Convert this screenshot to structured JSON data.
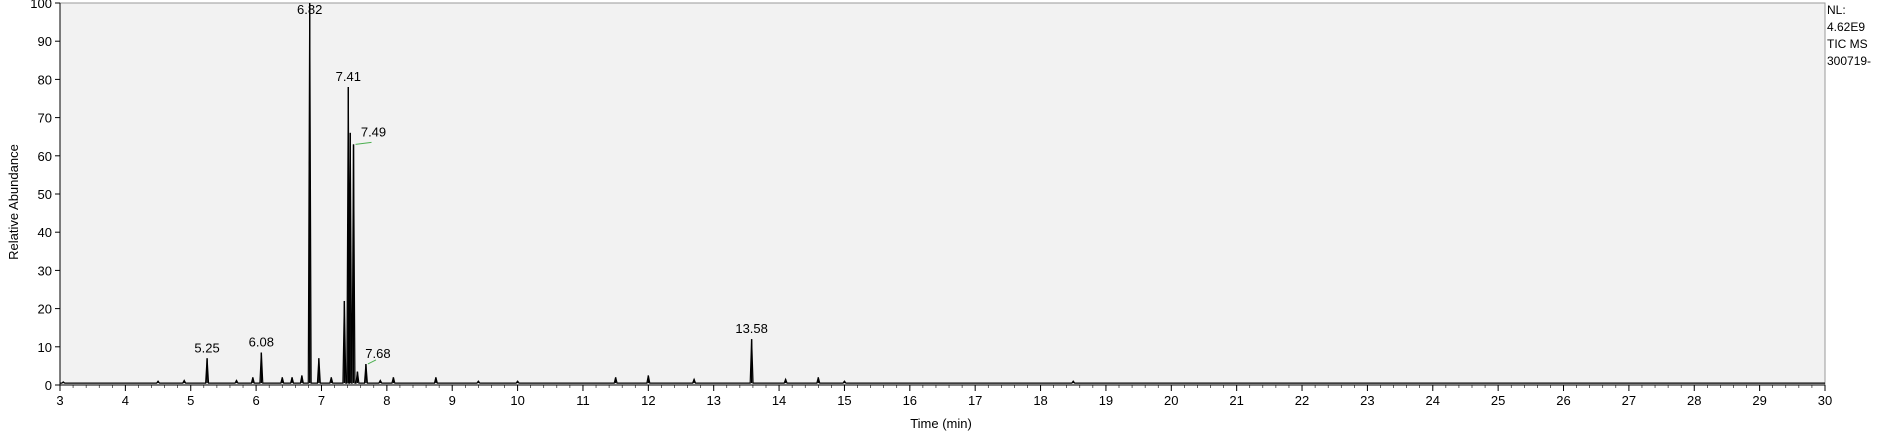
{
  "info": {
    "nl_label": "NL:",
    "nl_value": "4.62E9",
    "trace": "TIC  MS",
    "file": "300719-"
  },
  "chart_data": {
    "type": "line",
    "title": "",
    "xlabel": "Time (min)",
    "ylabel": "Relative Abundance",
    "xlim": [
      3,
      30
    ],
    "ylim": [
      0,
      100
    ],
    "xticks": [
      3,
      4,
      5,
      6,
      7,
      8,
      9,
      10,
      11,
      12,
      13,
      14,
      15,
      16,
      17,
      18,
      19,
      20,
      21,
      22,
      23,
      24,
      25,
      26,
      27,
      28,
      29,
      30
    ],
    "yticks": [
      0,
      10,
      20,
      30,
      40,
      50,
      60,
      70,
      80,
      90,
      100
    ],
    "grid": false,
    "plot_background": "#f2f2f2",
    "trace_color": "#000000",
    "baseline": 0.5,
    "peaks": [
      {
        "x": 3.05,
        "y": 0.8
      },
      {
        "x": 4.5,
        "y": 1.0
      },
      {
        "x": 4.9,
        "y": 1.2
      },
      {
        "x": 5.25,
        "y": 7.0
      },
      {
        "x": 5.7,
        "y": 1.2
      },
      {
        "x": 5.95,
        "y": 2.0
      },
      {
        "x": 6.08,
        "y": 8.5
      },
      {
        "x": 6.4,
        "y": 2.0
      },
      {
        "x": 6.55,
        "y": 2.0
      },
      {
        "x": 6.7,
        "y": 2.5
      },
      {
        "x": 6.82,
        "y": 100
      },
      {
        "x": 6.96,
        "y": 7.0
      },
      {
        "x": 7.15,
        "y": 2.0
      },
      {
        "x": 7.35,
        "y": 22.0
      },
      {
        "x": 7.41,
        "y": 78.0
      },
      {
        "x": 7.44,
        "y": 66.0
      },
      {
        "x": 7.49,
        "y": 63.0
      },
      {
        "x": 7.55,
        "y": 3.5
      },
      {
        "x": 7.68,
        "y": 5.5
      },
      {
        "x": 7.9,
        "y": 1.2
      },
      {
        "x": 8.1,
        "y": 2.0
      },
      {
        "x": 8.75,
        "y": 2.0
      },
      {
        "x": 9.4,
        "y": 1.0
      },
      {
        "x": 10.0,
        "y": 1.0
      },
      {
        "x": 11.5,
        "y": 2.0
      },
      {
        "x": 12.0,
        "y": 2.5
      },
      {
        "x": 12.7,
        "y": 1.5
      },
      {
        "x": 13.58,
        "y": 12.0
      },
      {
        "x": 14.1,
        "y": 1.5
      },
      {
        "x": 14.6,
        "y": 2.0
      },
      {
        "x": 15.0,
        "y": 1.0
      },
      {
        "x": 18.5,
        "y": 1.0
      }
    ],
    "annotations": [
      {
        "label": "5.25",
        "x": 5.25,
        "y": 7.0
      },
      {
        "label": "6.08",
        "x": 6.08,
        "y": 8.5
      },
      {
        "label": "6.82",
        "x": 6.82,
        "y": 100
      },
      {
        "label": "7.41",
        "x": 7.41,
        "y": 78.0
      },
      {
        "label": "7.49",
        "x": 7.49,
        "y": 63.0
      },
      {
        "label": "7.68",
        "x": 7.68,
        "y": 5.5
      },
      {
        "label": "13.58",
        "x": 13.58,
        "y": 12.0
      }
    ]
  }
}
